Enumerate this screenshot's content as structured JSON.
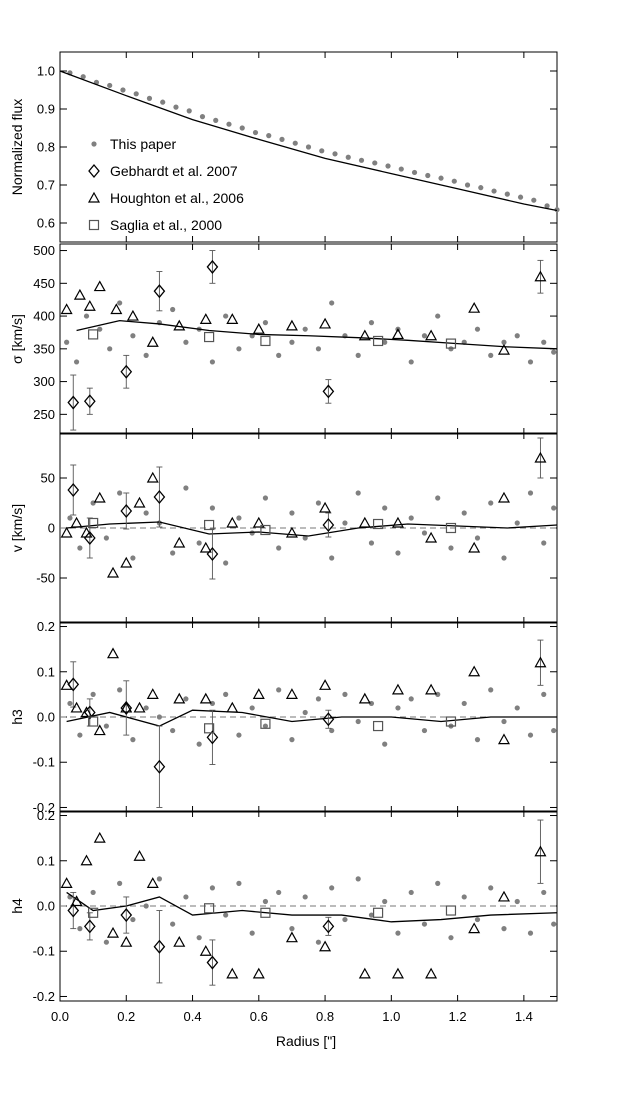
{
  "chart_data": {
    "type": "scatter",
    "xlabel": "Radius [\"]",
    "xlim": [
      0,
      1.5
    ],
    "xticks": [
      0.0,
      0.2,
      0.4,
      0.6,
      0.8,
      1.0,
      1.2,
      1.4
    ],
    "xtick_labels": [
      "0.0",
      "0.2",
      "0.4",
      "0.6",
      "0.8",
      "1.0",
      "1.2",
      "1.4"
    ],
    "legend": {
      "position": "lower-left of top panel",
      "entries": [
        {
          "label": "This paper",
          "marker": "filled-circle",
          "color": "#808080"
        },
        {
          "label": "Gebhardt et al. 2007",
          "marker": "diamond"
        },
        {
          "label": "Houghton et al., 2006",
          "marker": "triangle"
        },
        {
          "label": "Saglia et al., 2000",
          "marker": "square"
        }
      ]
    },
    "panels": [
      {
        "key": "flux",
        "ylabel": "Normalized flux",
        "ylim": [
          0.55,
          1.05
        ],
        "yticks": [
          0.6,
          0.7,
          0.8,
          0.9,
          1.0
        ],
        "ytick_labels": [
          "0.6",
          "0.7",
          "0.8",
          "0.9",
          "1.0"
        ],
        "model_line": {
          "x": [
            0.0,
            0.2,
            0.4,
            0.6,
            0.8,
            1.0,
            1.2,
            1.4,
            1.5
          ],
          "y": [
            1.0,
            0.935,
            0.872,
            0.82,
            0.77,
            0.73,
            0.69,
            0.65,
            0.633
          ]
        },
        "this_paper": {
          "x": [
            0.03,
            0.07,
            0.11,
            0.15,
            0.19,
            0.23,
            0.27,
            0.31,
            0.35,
            0.39,
            0.43,
            0.47,
            0.51,
            0.55,
            0.59,
            0.63,
            0.67,
            0.71,
            0.75,
            0.79,
            0.83,
            0.87,
            0.91,
            0.95,
            0.99,
            1.03,
            1.07,
            1.11,
            1.15,
            1.19,
            1.23,
            1.27,
            1.31,
            1.35,
            1.39,
            1.43,
            1.47,
            1.5
          ],
          "y": [
            0.995,
            0.985,
            0.97,
            0.962,
            0.95,
            0.94,
            0.928,
            0.918,
            0.905,
            0.895,
            0.88,
            0.87,
            0.86,
            0.85,
            0.838,
            0.83,
            0.82,
            0.81,
            0.8,
            0.79,
            0.782,
            0.773,
            0.765,
            0.758,
            0.75,
            0.742,
            0.733,
            0.725,
            0.718,
            0.71,
            0.7,
            0.693,
            0.684,
            0.676,
            0.668,
            0.66,
            0.645,
            0.635
          ]
        }
      },
      {
        "key": "sigma",
        "ylabel": "σ [km/s]",
        "ylim": [
          220,
          510
        ],
        "yticks": [
          250,
          300,
          350,
          400,
          450,
          500
        ],
        "ytick_labels": [
          "250",
          "300",
          "350",
          "400",
          "450",
          "500"
        ],
        "model_line": {
          "x": [
            0.05,
            0.18,
            0.3,
            0.45,
            0.6,
            0.75,
            0.9,
            1.05,
            1.2,
            1.35,
            1.5
          ],
          "y": [
            378,
            393,
            388,
            378,
            372,
            370,
            367,
            363,
            358,
            353,
            350
          ]
        },
        "this_paper": {
          "x": [
            0.02,
            0.05,
            0.08,
            0.12,
            0.15,
            0.18,
            0.22,
            0.26,
            0.3,
            0.34,
            0.38,
            0.42,
            0.46,
            0.5,
            0.54,
            0.58,
            0.62,
            0.66,
            0.7,
            0.74,
            0.78,
            0.82,
            0.86,
            0.9,
            0.94,
            0.98,
            1.02,
            1.06,
            1.1,
            1.14,
            1.18,
            1.22,
            1.26,
            1.3,
            1.34,
            1.38,
            1.42,
            1.46,
            1.49
          ],
          "y": [
            360,
            330,
            400,
            380,
            350,
            420,
            370,
            340,
            390,
            410,
            360,
            380,
            330,
            400,
            350,
            370,
            390,
            340,
            360,
            380,
            350,
            420,
            370,
            340,
            390,
            360,
            380,
            330,
            370,
            400,
            350,
            360,
            380,
            340,
            360,
            370,
            330,
            360,
            345
          ]
        },
        "gebhardt": {
          "x": [
            0.04,
            0.09,
            0.2,
            0.3,
            0.46,
            0.81
          ],
          "y": [
            268,
            270,
            315,
            438,
            475,
            285
          ],
          "err": [
            42,
            20,
            25,
            30,
            25,
            18
          ]
        },
        "houghton": {
          "x": [
            0.02,
            0.06,
            0.09,
            0.12,
            0.17,
            0.22,
            0.28,
            0.36,
            0.44,
            0.52,
            0.6,
            0.7,
            0.8,
            0.92,
            1.02,
            1.12,
            1.25,
            1.34,
            1.45
          ],
          "y": [
            410,
            432,
            415,
            445,
            410,
            400,
            360,
            385,
            395,
            395,
            380,
            385,
            388,
            370,
            372,
            370,
            412,
            348,
            460
          ],
          "err": [
            0,
            0,
            0,
            0,
            0,
            0,
            0,
            0,
            0,
            0,
            0,
            0,
            0,
            0,
            0,
            0,
            0,
            0,
            25
          ]
        },
        "saglia": {
          "x": [
            0.1,
            0.45,
            0.62,
            0.96,
            1.18
          ],
          "y": [
            372,
            368,
            362,
            362,
            358
          ]
        }
      },
      {
        "key": "v",
        "ylabel": "v [km/s]",
        "ylim": [
          -95,
          95
        ],
        "yticks": [
          -50,
          0,
          50
        ],
        "ytick_labels": [
          "-50",
          "0",
          "50"
        ],
        "model_line": {
          "x": [
            0.02,
            0.15,
            0.3,
            0.45,
            0.6,
            0.75,
            0.9,
            1.05,
            1.2,
            1.35,
            1.5
          ],
          "y": [
            0,
            4,
            6,
            -6,
            -4,
            -8,
            0,
            4,
            2,
            0,
            3
          ]
        },
        "this_paper": {
          "x": [
            0.03,
            0.06,
            0.1,
            0.14,
            0.18,
            0.22,
            0.26,
            0.3,
            0.34,
            0.38,
            0.42,
            0.46,
            0.5,
            0.54,
            0.58,
            0.62,
            0.66,
            0.7,
            0.74,
            0.78,
            0.82,
            0.86,
            0.9,
            0.94,
            0.98,
            1.02,
            1.06,
            1.1,
            1.14,
            1.18,
            1.22,
            1.26,
            1.3,
            1.34,
            1.38,
            1.42,
            1.46,
            1.49
          ],
          "y": [
            10,
            -20,
            25,
            -10,
            35,
            -30,
            15,
            5,
            -25,
            40,
            -15,
            20,
            -35,
            10,
            -5,
            30,
            -20,
            15,
            -10,
            25,
            -30,
            5,
            35,
            -15,
            20,
            -25,
            10,
            -5,
            30,
            -20,
            15,
            -10,
            25,
            -30,
            5,
            35,
            -15,
            20
          ]
        },
        "gebhardt": {
          "x": [
            0.04,
            0.09,
            0.2,
            0.3,
            0.46,
            0.81
          ],
          "y": [
            38,
            -10,
            17,
            31,
            -26,
            3
          ],
          "err": [
            25,
            20,
            18,
            30,
            25,
            12
          ]
        },
        "houghton": {
          "x": [
            0.02,
            0.05,
            0.08,
            0.12,
            0.16,
            0.2,
            0.24,
            0.28,
            0.36,
            0.44,
            0.52,
            0.6,
            0.7,
            0.8,
            0.92,
            1.02,
            1.12,
            1.25,
            1.34,
            1.45
          ],
          "y": [
            -5,
            5,
            -5,
            30,
            -45,
            -35,
            25,
            50,
            -15,
            -20,
            5,
            5,
            -5,
            20,
            5,
            5,
            -10,
            -20,
            30,
            70
          ],
          "err": [
            0,
            0,
            0,
            0,
            0,
            0,
            0,
            0,
            0,
            0,
            0,
            0,
            0,
            0,
            0,
            0,
            0,
            0,
            0,
            20
          ]
        },
        "saglia": {
          "x": [
            0.1,
            0.45,
            0.62,
            0.96,
            1.18
          ],
          "y": [
            5,
            3,
            -2,
            4,
            0
          ]
        }
      },
      {
        "key": "h3",
        "ylabel": "h3",
        "ylim": [
          -0.21,
          0.21
        ],
        "yticks": [
          -0.2,
          -0.1,
          0.0,
          0.1,
          0.2
        ],
        "ytick_labels": [
          "-0.2",
          "-0.1",
          "0.0",
          "0.1",
          "0.2"
        ],
        "model_line": {
          "x": [
            0.02,
            0.15,
            0.3,
            0.4,
            0.55,
            0.7,
            0.85,
            1.0,
            1.15,
            1.3,
            1.5
          ],
          "y": [
            -0.01,
            0.01,
            -0.02,
            0.015,
            0.01,
            -0.01,
            0.0,
            0.0,
            -0.01,
            0.0,
            0.0
          ]
        },
        "this_paper": {
          "x": [
            0.03,
            0.06,
            0.1,
            0.14,
            0.18,
            0.22,
            0.26,
            0.3,
            0.34,
            0.38,
            0.42,
            0.46,
            0.5,
            0.54,
            0.58,
            0.62,
            0.66,
            0.7,
            0.74,
            0.78,
            0.82,
            0.86,
            0.9,
            0.94,
            0.98,
            1.02,
            1.06,
            1.1,
            1.14,
            1.18,
            1.22,
            1.26,
            1.3,
            1.34,
            1.38,
            1.42,
            1.46,
            1.49
          ],
          "y": [
            0.03,
            -0.04,
            0.05,
            -0.02,
            0.06,
            -0.05,
            0.02,
            0.0,
            -0.03,
            0.04,
            -0.06,
            0.03,
            0.05,
            -0.04,
            0.02,
            -0.02,
            0.06,
            -0.05,
            0.01,
            0.04,
            -0.03,
            0.05,
            -0.01,
            0.03,
            -0.06,
            0.02,
            0.04,
            -0.03,
            0.05,
            -0.02,
            0.03,
            -0.05,
            0.06,
            -0.01,
            0.02,
            -0.04,
            0.05,
            -0.03
          ]
        },
        "gebhardt": {
          "x": [
            0.04,
            0.09,
            0.2,
            0.3,
            0.46,
            0.81
          ],
          "y": [
            0.072,
            0.01,
            0.02,
            -0.11,
            -0.045,
            -0.005
          ],
          "err": [
            0.05,
            0.03,
            0.06,
            0.09,
            0.06,
            0.02
          ]
        },
        "houghton": {
          "x": [
            0.02,
            0.05,
            0.08,
            0.12,
            0.16,
            0.2,
            0.24,
            0.28,
            0.36,
            0.44,
            0.52,
            0.6,
            0.7,
            0.8,
            0.92,
            1.02,
            1.12,
            1.25,
            1.34,
            1.45
          ],
          "y": [
            0.07,
            0.02,
            0.01,
            -0.03,
            0.14,
            0.02,
            0.02,
            0.05,
            0.04,
            0.04,
            0.02,
            0.05,
            0.05,
            0.07,
            0.04,
            0.06,
            0.06,
            0.1,
            -0.05,
            0.12
          ],
          "err": [
            0,
            0,
            0,
            0,
            0,
            0,
            0,
            0,
            0,
            0,
            0,
            0,
            0,
            0,
            0,
            0,
            0,
            0,
            0,
            0.05
          ]
        },
        "saglia": {
          "x": [
            0.1,
            0.45,
            0.62,
            0.96,
            1.18
          ],
          "y": [
            -0.01,
            -0.025,
            -0.015,
            -0.02,
            -0.01
          ]
        }
      },
      {
        "key": "h4",
        "ylabel": "h4",
        "ylim": [
          -0.21,
          0.21
        ],
        "yticks": [
          -0.2,
          -0.1,
          0.0,
          0.1,
          0.2
        ],
        "ytick_labels": [
          "-0.2",
          "-0.1",
          "0.0",
          "0.1",
          "0.2"
        ],
        "model_line": {
          "x": [
            0.02,
            0.1,
            0.2,
            0.3,
            0.4,
            0.55,
            0.7,
            0.85,
            1.0,
            1.15,
            1.3,
            1.5
          ],
          "y": [
            0.03,
            -0.01,
            0.0,
            0.02,
            -0.02,
            -0.01,
            -0.02,
            -0.02,
            -0.035,
            -0.03,
            -0.02,
            -0.015
          ]
        },
        "this_paper": {
          "x": [
            0.03,
            0.06,
            0.1,
            0.14,
            0.18,
            0.22,
            0.26,
            0.3,
            0.34,
            0.38,
            0.42,
            0.46,
            0.5,
            0.54,
            0.58,
            0.62,
            0.66,
            0.7,
            0.74,
            0.78,
            0.82,
            0.86,
            0.9,
            0.94,
            0.98,
            1.02,
            1.06,
            1.1,
            1.14,
            1.18,
            1.22,
            1.26,
            1.3,
            1.34,
            1.38,
            1.42,
            1.46,
            1.49
          ],
          "y": [
            0.02,
            -0.05,
            0.03,
            -0.08,
            0.05,
            -0.03,
            0.0,
            0.06,
            -0.04,
            0.02,
            -0.07,
            0.04,
            -0.02,
            0.05,
            -0.06,
            0.01,
            0.03,
            -0.05,
            0.02,
            -0.08,
            0.04,
            -0.03,
            0.06,
            -0.02,
            0.01,
            -0.06,
            0.03,
            -0.04,
            0.05,
            -0.07,
            0.02,
            -0.03,
            0.04,
            -0.05,
            0.01,
            -0.06,
            0.03,
            -0.04
          ]
        },
        "gebhardt": {
          "x": [
            0.04,
            0.09,
            0.2,
            0.3,
            0.46,
            0.81
          ],
          "y": [
            -0.01,
            -0.045,
            -0.02,
            -0.09,
            -0.125,
            -0.045
          ],
          "err": [
            0.04,
            0.03,
            0.04,
            0.08,
            0.05,
            0.02
          ]
        },
        "houghton": {
          "x": [
            0.02,
            0.05,
            0.08,
            0.12,
            0.16,
            0.2,
            0.24,
            0.28,
            0.36,
            0.44,
            0.52,
            0.6,
            0.7,
            0.8,
            0.92,
            1.02,
            1.12,
            1.25,
            1.34,
            1.45
          ],
          "y": [
            0.05,
            0.01,
            0.1,
            0.15,
            -0.06,
            -0.08,
            0.11,
            0.05,
            -0.08,
            -0.1,
            -0.15,
            -0.15,
            -0.07,
            -0.09,
            -0.15,
            -0.15,
            -0.15,
            -0.05,
            0.02,
            0.12
          ],
          "err": [
            0,
            0,
            0,
            0,
            0,
            0,
            0,
            0,
            0,
            0,
            0,
            0,
            0,
            0,
            0,
            0,
            0,
            0,
            0,
            0.07
          ]
        },
        "saglia": {
          "x": [
            0.1,
            0.45,
            0.62,
            0.96,
            1.18
          ],
          "y": [
            -0.015,
            -0.005,
            -0.015,
            -0.015,
            -0.01
          ]
        }
      }
    ]
  }
}
